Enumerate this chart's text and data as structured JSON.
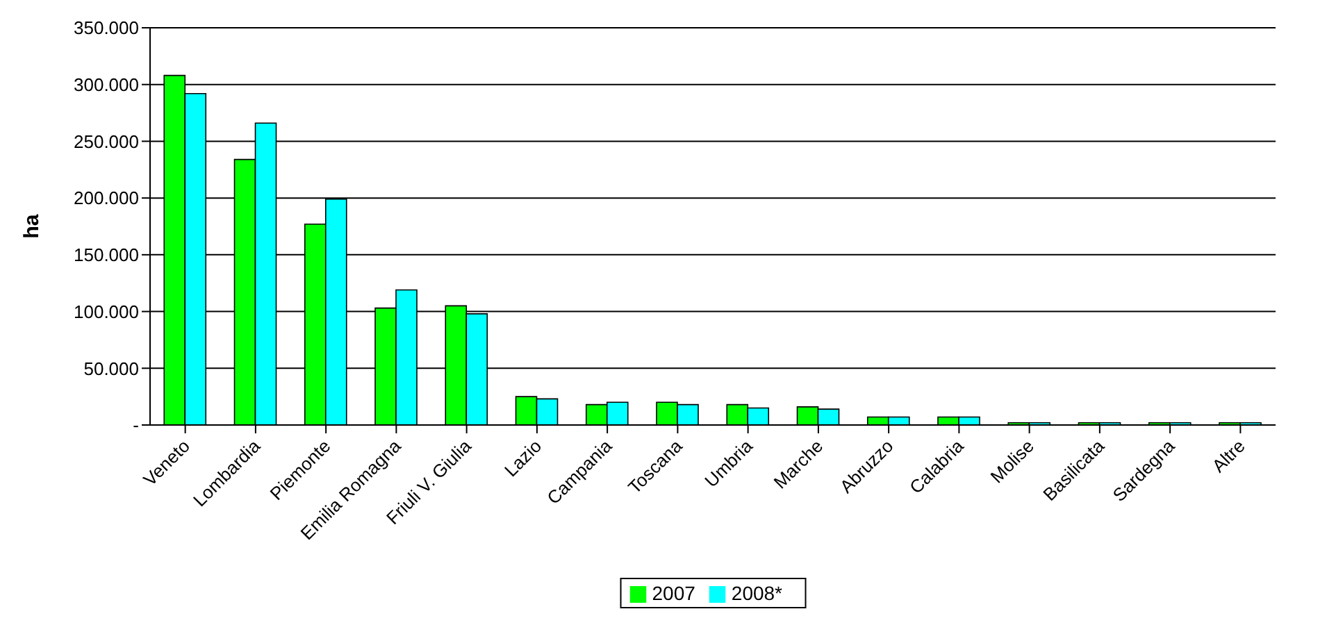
{
  "chart_data": {
    "type": "bar",
    "ylabel": "ha",
    "categories": [
      "Veneto",
      "Lombardia",
      "Piemonte",
      "Emilia Romagna",
      "Friuli V. Giulia",
      "Lazio",
      "Campania",
      "Toscana",
      "Umbria",
      "Marche",
      "Abruzzo",
      "Calabria",
      "Molise",
      "Basilicata",
      "Sardegna",
      "Altre"
    ],
    "series": [
      {
        "name": "2007",
        "color": "#00ff00",
        "values": [
          308000,
          234000,
          177000,
          103000,
          105000,
          25000,
          18000,
          20000,
          18000,
          16000,
          7000,
          7000,
          2000,
          2000,
          2000,
          2000
        ]
      },
      {
        "name": "2008*",
        "color": "#00ffff",
        "values": [
          292000,
          266000,
          199000,
          119000,
          98000,
          23000,
          20000,
          18000,
          15000,
          14000,
          7000,
          7000,
          2000,
          2000,
          2000,
          2000
        ]
      }
    ],
    "ylim": [
      0,
      350000
    ],
    "yticks": [
      {
        "value": 0,
        "label": "-"
      },
      {
        "value": 50000,
        "label": "50.000"
      },
      {
        "value": 100000,
        "label": "100.000"
      },
      {
        "value": 150000,
        "label": "150.000"
      },
      {
        "value": 200000,
        "label": "200.000"
      },
      {
        "value": 250000,
        "label": "250.000"
      },
      {
        "value": 300000,
        "label": "300.000"
      },
      {
        "value": 350000,
        "label": "350.000"
      }
    ],
    "grid": "y",
    "legend": "bottom"
  }
}
